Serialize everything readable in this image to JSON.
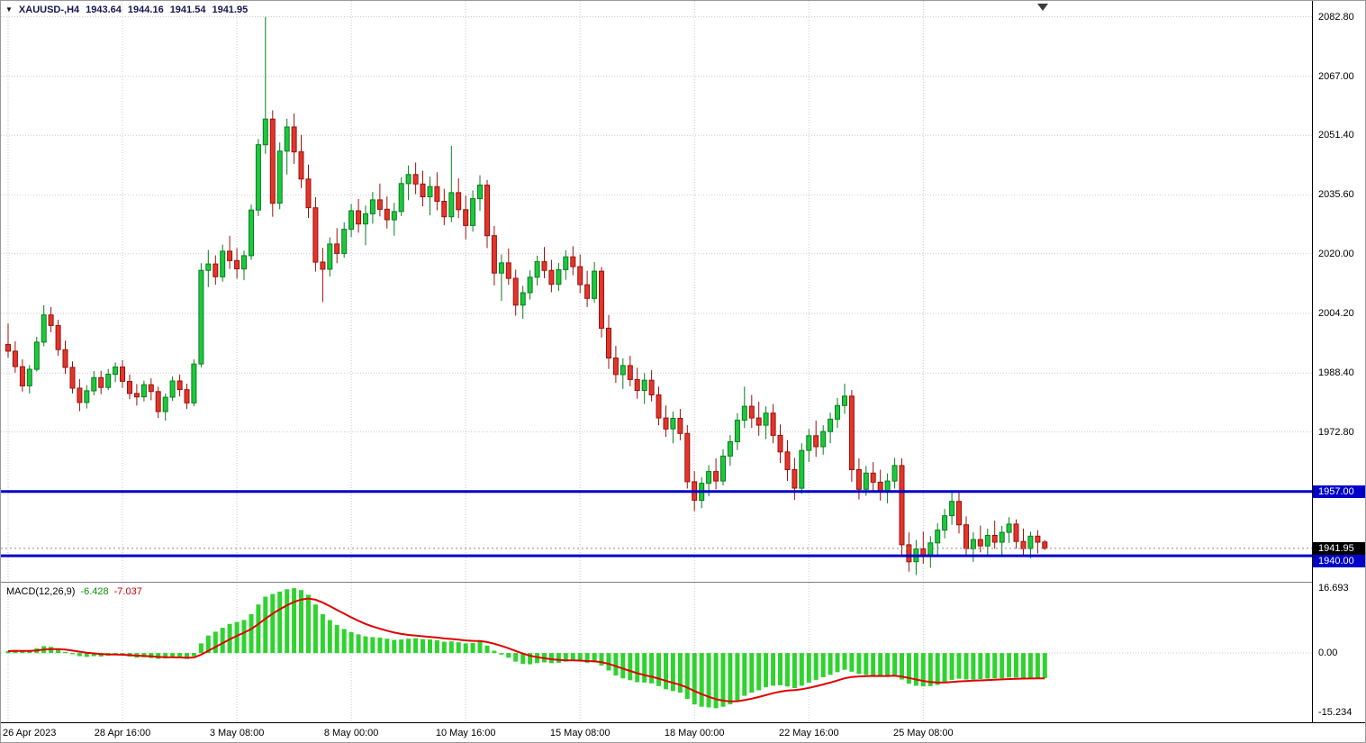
{
  "header": {
    "title": "XAUUSD-,H4",
    "open": "1943.64",
    "high": "1944.16",
    "low": "1941.54",
    "close": "1941.95"
  },
  "macd": {
    "label": "MACD(12,26,9)",
    "main_value": "-6.428",
    "signal_value": "-7.037",
    "axis_labels": [
      "16.693",
      "0.00",
      "-15.234"
    ]
  },
  "colors": {
    "bull": "#1ec83c",
    "bull_border": "#067d1e",
    "bear": "#e2362b",
    "bear_border": "#9c100c",
    "grid": "#c9c9c9",
    "macd_hist": "#2fd32f",
    "macd_signal": "#e00000",
    "level_blue": "#0000C8",
    "bid_tag_bg": "#000000",
    "axis_text": "#000000"
  },
  "chart_data": [
    {
      "type": "candlestick",
      "symbol": "XAUUSD-",
      "timeframe": "H4",
      "x_tick_labels": [
        "26 Apr 2023",
        "28 Apr 16:00",
        "3 May 08:00",
        "8 May 00:00",
        "10 May 16:00",
        "15 May 08:00",
        "18 May 00:00",
        "22 May 16:00",
        "25 May 08:00"
      ],
      "x_tick_indices": [
        0,
        16,
        32,
        48,
        64,
        80,
        96,
        112,
        128
      ],
      "y_tick_prices": [
        2082.8,
        2067.0,
        2051.4,
        2035.6,
        2020.0,
        2004.2,
        1988.4,
        1972.8
      ],
      "ylim": [
        1933.1,
        2087.0
      ],
      "grid": true,
      "bar_spacing": 7.94,
      "x_offset": 8,
      "hlines": [
        {
          "name": "resistance",
          "price": 1957.0,
          "color": "#0000C8",
          "width": 3,
          "tag": "1957.00",
          "tag_bg": "#0000C8"
        },
        {
          "name": "bid",
          "price": 1941.95,
          "color": "#8a8a8a",
          "width": 1,
          "dash": "2 3",
          "tag": "1941.95",
          "tag_bg": "#000000"
        },
        {
          "name": "support",
          "price": 1940.0,
          "color": "#0000C8",
          "width": 3,
          "tag": "1940.00",
          "tag_bg": "#0000C8"
        }
      ],
      "candles": [
        [
          1996.0,
          2001.5,
          1992.5,
          1994.2
        ],
        [
          1994.2,
          1996.8,
          1988.5,
          1990.1
        ],
        [
          1990.1,
          1992.0,
          1983.5,
          1985.0
        ],
        [
          1985.0,
          1990.5,
          1983.0,
          1989.4
        ],
        [
          1989.4,
          1998.0,
          1988.8,
          1996.6
        ],
        [
          1996.6,
          2006.4,
          1995.5,
          2003.8
        ],
        [
          2003.8,
          2005.9,
          1999.2,
          2001.0
        ],
        [
          2001.0,
          2002.5,
          1993.0,
          1994.6
        ],
        [
          1994.6,
          1997.0,
          1988.2,
          1989.9
        ],
        [
          1989.9,
          1991.5,
          1983.0,
          1984.4
        ],
        [
          1984.4,
          1986.8,
          1978.3,
          1980.6
        ],
        [
          1980.6,
          1985.2,
          1979.0,
          1983.7
        ],
        [
          1983.7,
          1988.9,
          1982.5,
          1987.2
        ],
        [
          1987.2,
          1989.0,
          1982.8,
          1984.6
        ],
        [
          1984.6,
          1989.5,
          1983.9,
          1988.1
        ],
        [
          1988.1,
          1991.2,
          1986.0,
          1990.0
        ],
        [
          1990.0,
          1991.8,
          1984.5,
          1986.2
        ],
        [
          1986.2,
          1988.0,
          1981.5,
          1983.0
        ],
        [
          1983.0,
          1985.5,
          1979.8,
          1982.1
        ],
        [
          1982.1,
          1986.4,
          1980.9,
          1985.3
        ],
        [
          1985.3,
          1987.0,
          1981.2,
          1983.5
        ],
        [
          1983.5,
          1984.8,
          1976.5,
          1978.2
        ],
        [
          1978.2,
          1983.0,
          1975.8,
          1982.0
        ],
        [
          1982.0,
          1987.5,
          1981.0,
          1986.3
        ],
        [
          1986.3,
          1988.0,
          1982.2,
          1984.0
        ],
        [
          1984.0,
          1985.6,
          1978.9,
          1980.5
        ],
        [
          1980.5,
          1992.0,
          1979.6,
          1990.8
        ],
        [
          1990.8,
          2017.5,
          1989.9,
          2015.6
        ],
        [
          2015.6,
          2021.0,
          2011.2,
          2017.3
        ],
        [
          2017.3,
          2019.6,
          2011.8,
          2013.9
        ],
        [
          2013.9,
          2022.4,
          2012.6,
          2020.7
        ],
        [
          2020.7,
          2024.8,
          2016.0,
          2018.2
        ],
        [
          2018.2,
          2021.5,
          2013.4,
          2016.0
        ],
        [
          2016.0,
          2020.8,
          2013.0,
          2019.5
        ],
        [
          2019.5,
          2033.0,
          2018.4,
          2031.6
        ],
        [
          2031.6,
          2050.4,
          2030.0,
          2048.9
        ],
        [
          2048.9,
          2082.8,
          2046.5,
          2055.7
        ],
        [
          2055.7,
          2058.0,
          2029.8,
          2033.4
        ],
        [
          2033.4,
          2049.5,
          2031.8,
          2047.2
        ],
        [
          2047.2,
          2055.8,
          2041.0,
          2053.6
        ],
        [
          2053.6,
          2057.2,
          2043.8,
          2047.0
        ],
        [
          2047.0,
          2051.5,
          2037.4,
          2039.8
        ],
        [
          2039.8,
          2043.6,
          2029.5,
          2032.2
        ],
        [
          2032.2,
          2035.0,
          2015.3,
          2017.8
        ],
        [
          2017.8,
          2021.6,
          2007.2,
          2015.9
        ],
        [
          2015.9,
          2024.4,
          2014.0,
          2022.6
        ],
        [
          2022.6,
          2026.8,
          2017.5,
          2020.1
        ],
        [
          2020.1,
          2028.3,
          2019.0,
          2026.5
        ],
        [
          2026.5,
          2033.2,
          2024.4,
          2031.4
        ],
        [
          2031.4,
          2034.5,
          2025.6,
          2027.9
        ],
        [
          2027.9,
          2032.8,
          2022.3,
          2030.6
        ],
        [
          2030.6,
          2036.4,
          2028.0,
          2034.3
        ],
        [
          2034.3,
          2038.6,
          2029.9,
          2031.8
        ],
        [
          2031.8,
          2035.2,
          2026.7,
          2029.0
        ],
        [
          2029.0,
          2033.5,
          2024.8,
          2031.2
        ],
        [
          2031.2,
          2040.3,
          2030.0,
          2038.6
        ],
        [
          2038.6,
          2043.4,
          2034.2,
          2041.0
        ],
        [
          2041.0,
          2044.2,
          2035.8,
          2038.5
        ],
        [
          2038.5,
          2042.0,
          2032.6,
          2035.1
        ],
        [
          2035.1,
          2040.4,
          2030.2,
          2037.8
        ],
        [
          2037.8,
          2041.6,
          2031.5,
          2033.9
        ],
        [
          2033.9,
          2037.2,
          2027.6,
          2029.8
        ],
        [
          2029.8,
          2048.6,
          2028.4,
          2036.2
        ],
        [
          2036.2,
          2040.0,
          2029.5,
          2031.7
        ],
        [
          2031.7,
          2035.4,
          2023.8,
          2027.5
        ],
        [
          2027.5,
          2036.8,
          2025.9,
          2034.6
        ],
        [
          2034.6,
          2040.8,
          2031.4,
          2038.2
        ],
        [
          2038.2,
          2039.6,
          2021.5,
          2024.8
        ],
        [
          2024.8,
          2027.4,
          2011.6,
          2014.9
        ],
        [
          2014.9,
          2019.8,
          2007.5,
          2017.6
        ],
        [
          2017.6,
          2021.4,
          2011.8,
          2013.5
        ],
        [
          2013.5,
          2015.8,
          2003.6,
          2006.4
        ],
        [
          2006.4,
          2011.5,
          2002.8,
          2009.7
        ],
        [
          2009.7,
          2015.6,
          2007.9,
          2013.8
        ],
        [
          2013.8,
          2019.5,
          2011.6,
          2017.9
        ],
        [
          2017.9,
          2021.8,
          2013.5,
          2015.6
        ],
        [
          2015.6,
          2018.4,
          2009.8,
          2011.9
        ],
        [
          2011.9,
          2017.6,
          2010.2,
          2015.8
        ],
        [
          2015.8,
          2020.9,
          2013.1,
          2019.2
        ],
        [
          2019.2,
          2022.0,
          2014.3,
          2016.6
        ],
        [
          2016.6,
          2019.8,
          2009.6,
          2011.8
        ],
        [
          2011.8,
          2015.5,
          2005.9,
          2008.2
        ],
        [
          2008.2,
          2017.8,
          2007.0,
          2015.4
        ],
        [
          2015.4,
          2016.5,
          1997.8,
          2000.3
        ],
        [
          2000.3,
          2003.8,
          1989.5,
          1992.4
        ],
        [
          1992.4,
          1995.6,
          1985.8,
          1988.0
        ],
        [
          1988.0,
          1992.3,
          1984.2,
          1990.4
        ],
        [
          1990.4,
          1993.0,
          1984.9,
          1986.7
        ],
        [
          1986.7,
          1989.8,
          1981.6,
          1983.8
        ],
        [
          1983.8,
          1988.4,
          1980.2,
          1986.5
        ],
        [
          1986.5,
          1989.2,
          1980.9,
          1982.6
        ],
        [
          1982.6,
          1984.8,
          1974.6,
          1976.5
        ],
        [
          1976.5,
          1979.8,
          1971.5,
          1973.6
        ],
        [
          1973.6,
          1978.2,
          1969.8,
          1976.4
        ],
        [
          1976.4,
          1978.9,
          1970.6,
          1972.4
        ],
        [
          1972.4,
          1974.6,
          1957.8,
          1959.6
        ],
        [
          1959.6,
          1962.4,
          1951.8,
          1954.7
        ],
        [
          1954.7,
          1960.8,
          1952.6,
          1959.2
        ],
        [
          1959.2,
          1964.0,
          1955.8,
          1962.3
        ],
        [
          1962.3,
          1965.8,
          1957.6,
          1959.8
        ],
        [
          1959.8,
          1968.2,
          1958.6,
          1966.4
        ],
        [
          1966.4,
          1972.0,
          1963.8,
          1970.2
        ],
        [
          1970.2,
          1977.8,
          1968.0,
          1975.9
        ],
        [
          1975.9,
          1984.8,
          1973.8,
          1979.6
        ],
        [
          1979.6,
          1982.6,
          1973.9,
          1976.5
        ],
        [
          1976.5,
          1980.8,
          1971.8,
          1974.6
        ],
        [
          1974.6,
          1979.6,
          1970.9,
          1977.8
        ],
        [
          1977.8,
          1980.2,
          1969.8,
          1971.9
        ],
        [
          1971.9,
          1974.8,
          1964.6,
          1967.5
        ],
        [
          1967.5,
          1970.6,
          1959.8,
          1962.8
        ],
        [
          1962.8,
          1965.9,
          1954.8,
          1957.9
        ],
        [
          1957.9,
          1969.8,
          1956.4,
          1967.9
        ],
        [
          1967.9,
          1973.6,
          1964.8,
          1971.8
        ],
        [
          1971.8,
          1975.8,
          1966.2,
          1968.9
        ],
        [
          1968.9,
          1974.6,
          1966.8,
          1972.9
        ],
        [
          1972.9,
          1977.9,
          1969.8,
          1976.2
        ],
        [
          1976.2,
          1981.8,
          1973.9,
          1979.8
        ],
        [
          1979.8,
          1985.6,
          1977.6,
          1982.3
        ],
        [
          1982.3,
          1983.9,
          1959.6,
          1962.8
        ],
        [
          1962.8,
          1965.8,
          1954.9,
          1957.6
        ],
        [
          1957.6,
          1963.8,
          1955.9,
          1961.9
        ],
        [
          1961.9,
          1964.8,
          1956.8,
          1959.5
        ],
        [
          1959.5,
          1962.8,
          1954.6,
          1956.9
        ],
        [
          1956.9,
          1961.8,
          1953.9,
          1959.8
        ],
        [
          1959.8,
          1965.9,
          1957.8,
          1963.9
        ],
        [
          1963.9,
          1965.8,
          1939.8,
          1942.9
        ],
        [
          1942.9,
          1946.2,
          1935.8,
          1938.4
        ],
        [
          1938.4,
          1944.2,
          1934.9,
          1941.8
        ],
        [
          1941.8,
          1946.4,
          1937.9,
          1939.9
        ],
        [
          1939.9,
          1945.2,
          1936.8,
          1943.4
        ],
        [
          1943.4,
          1948.6,
          1940.2,
          1946.8
        ],
        [
          1946.8,
          1952.4,
          1944.6,
          1950.6
        ],
        [
          1950.6,
          1956.8,
          1948.2,
          1954.4
        ],
        [
          1954.4,
          1956.9,
          1945.9,
          1948.2
        ],
        [
          1948.2,
          1950.4,
          1939.8,
          1941.9
        ],
        [
          1941.9,
          1946.2,
          1938.4,
          1944.3
        ],
        [
          1944.3,
          1948.0,
          1940.9,
          1942.6
        ],
        [
          1942.6,
          1947.2,
          1939.9,
          1945.4
        ],
        [
          1945.4,
          1949.3,
          1941.8,
          1943.6
        ],
        [
          1943.6,
          1947.9,
          1939.9,
          1946.2
        ],
        [
          1946.2,
          1950.2,
          1943.4,
          1948.4
        ],
        [
          1948.4,
          1949.6,
          1941.9,
          1943.8
        ],
        [
          1943.8,
          1947.2,
          1940.2,
          1941.9
        ],
        [
          1941.9,
          1946.4,
          1939.4,
          1945.2
        ],
        [
          1945.2,
          1946.8,
          1940.6,
          1943.6
        ],
        [
          1943.64,
          1944.16,
          1941.54,
          1941.95
        ]
      ]
    },
    {
      "type": "macd",
      "params": [
        12,
        26,
        9
      ],
      "signal_period": 9,
      "y_tick_values": [
        16.693,
        0.0,
        -15.234
      ],
      "ylim": [
        -17.8,
        18.1
      ],
      "histogram": [
        0.5,
        0.8,
        0.6,
        0.4,
        1.2,
        1.8,
        1.6,
        1.0,
        0.3,
        -0.3,
        -0.8,
        -1.0,
        -0.8,
        -0.9,
        -0.7,
        -0.5,
        -0.6,
        -0.9,
        -1.2,
        -1.1,
        -1.3,
        -1.5,
        -1.4,
        -1.2,
        -1.3,
        -1.5,
        -0.8,
        2.5,
        4.5,
        5.5,
        6.5,
        7.5,
        8.0,
        8.5,
        10.0,
        12.5,
        14.5,
        15.2,
        15.8,
        16.4,
        16.693,
        16.2,
        15.0,
        12.5,
        10.0,
        8.5,
        7.2,
        6.2,
        5.4,
        4.8,
        4.3,
        4.1,
        4.0,
        3.7,
        3.4,
        3.5,
        3.7,
        3.8,
        3.6,
        3.5,
        3.3,
        2.9,
        3.0,
        2.8,
        2.5,
        2.6,
        2.9,
        1.9,
        0.6,
        -0.4,
        -1.2,
        -2.2,
        -2.8,
        -2.9,
        -2.6,
        -2.4,
        -2.6,
        -2.5,
        -2.2,
        -2.0,
        -2.1,
        -2.5,
        -2.4,
        -3.2,
        -4.5,
        -5.8,
        -6.5,
        -7.0,
        -7.5,
        -7.6,
        -7.8,
        -8.5,
        -9.3,
        -9.8,
        -10.2,
        -11.8,
        -13.2,
        -13.8,
        -14.0,
        -14.2,
        -13.8,
        -13.2,
        -12.2,
        -11.0,
        -10.2,
        -9.6,
        -8.8,
        -8.4,
        -8.3,
        -8.6,
        -9.0,
        -8.4,
        -7.6,
        -6.9,
        -6.2,
        -5.6,
        -4.9,
        -4.3,
        -4.8,
        -5.4,
        -5.6,
        -5.7,
        -5.9,
        -5.9,
        -5.6,
        -6.8,
        -7.9,
        -8.4,
        -8.6,
        -8.5,
        -8.2,
        -7.6,
        -6.9,
        -6.6,
        -6.8,
        -6.8,
        -6.7,
        -6.6,
        -6.5,
        -6.5,
        -6.3,
        -6.3,
        -6.4,
        -6.4,
        -6.4,
        -6.428
      ]
    }
  ]
}
